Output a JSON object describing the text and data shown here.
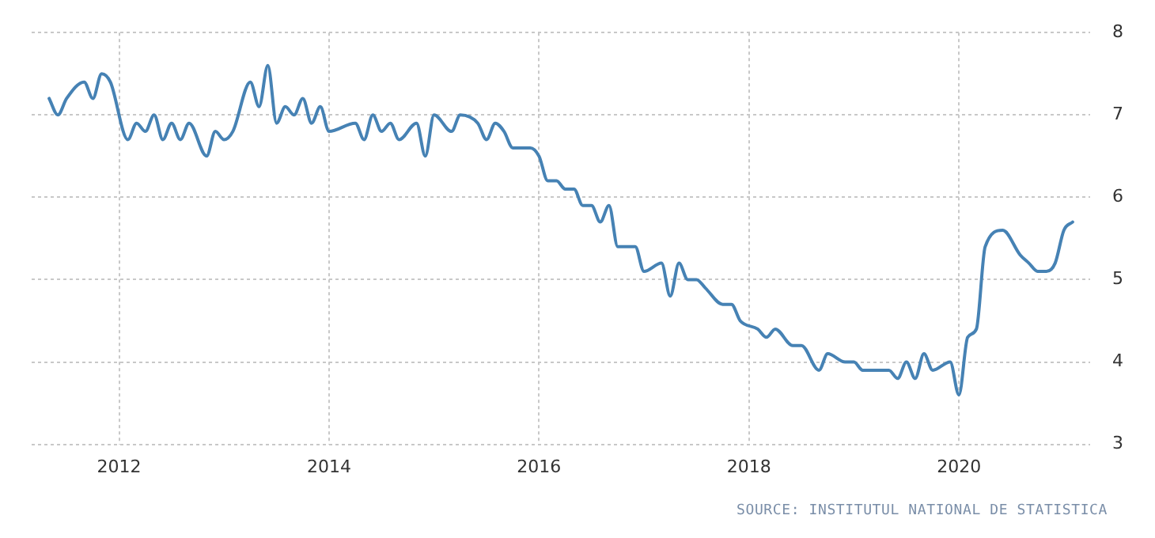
{
  "chart_data": {
    "type": "line",
    "x": [
      "2011-05",
      "2011-06",
      "2011-07",
      "2011-09",
      "2011-10",
      "2011-11",
      "2011-12",
      "2012-02",
      "2012-03",
      "2012-04",
      "2012-05",
      "2012-06",
      "2012-07",
      "2012-08",
      "2012-09",
      "2012-11",
      "2012-12",
      "2013-01",
      "2013-02",
      "2013-04",
      "2013-05",
      "2013-06",
      "2013-07",
      "2013-08",
      "2013-09",
      "2013-10",
      "2013-11",
      "2013-12",
      "2014-01",
      "2014-04",
      "2014-05",
      "2014-06",
      "2014-07",
      "2014-08",
      "2014-09",
      "2014-11",
      "2014-12",
      "2015-01",
      "2015-03",
      "2015-04",
      "2015-06",
      "2015-07",
      "2015-08",
      "2015-09",
      "2015-10",
      "2015-12",
      "2016-01",
      "2016-02",
      "2016-03",
      "2016-04",
      "2016-05",
      "2016-06",
      "2016-07",
      "2016-08",
      "2016-09",
      "2016-10",
      "2016-12",
      "2017-01",
      "2017-03",
      "2017-04",
      "2017-05",
      "2017-06",
      "2017-07",
      "2017-08",
      "2017-10",
      "2017-11",
      "2017-12",
      "2018-02",
      "2018-03",
      "2018-04",
      "2018-06",
      "2018-07",
      "2018-09",
      "2018-10",
      "2018-12",
      "2019-01",
      "2019-02",
      "2019-05",
      "2019-06",
      "2019-07",
      "2019-08",
      "2019-09",
      "2019-10",
      "2019-12",
      "2020-01",
      "2020-02",
      "2020-03",
      "2020-04",
      "2020-06",
      "2020-08",
      "2020-09",
      "2020-10",
      "2020-11",
      "2020-12",
      "2021-01",
      "2021-02"
    ],
    "series": [
      {
        "color": "#4682b4",
        "values": [
          7.2,
          7.0,
          7.2,
          7.4,
          7.2,
          7.5,
          7.4,
          6.7,
          6.9,
          6.8,
          7.0,
          6.7,
          6.9,
          6.7,
          6.9,
          6.5,
          6.8,
          6.7,
          6.8,
          7.4,
          7.1,
          7.6,
          6.9,
          7.1,
          7.0,
          7.2,
          6.9,
          7.1,
          6.8,
          6.9,
          6.7,
          7.0,
          6.8,
          6.9,
          6.7,
          6.9,
          6.5,
          7.0,
          6.8,
          7.0,
          6.9,
          6.7,
          6.9,
          6.8,
          6.6,
          6.6,
          6.5,
          6.2,
          6.2,
          6.1,
          6.1,
          5.9,
          5.9,
          5.7,
          5.9,
          5.4,
          5.4,
          5.1,
          5.2,
          4.8,
          5.2,
          5.0,
          5.0,
          4.9,
          4.7,
          4.7,
          4.5,
          4.4,
          4.3,
          4.4,
          4.2,
          4.2,
          3.9,
          4.1,
          4.0,
          4.0,
          3.9,
          3.9,
          3.8,
          4.0,
          3.8,
          4.1,
          3.9,
          4.0,
          3.6,
          4.3,
          4.4,
          5.4,
          5.6,
          5.3,
          5.2,
          5.1,
          5.1,
          5.2,
          5.6,
          5.7
        ]
      }
    ],
    "xlim": [
      "2011-03",
      "2021-04"
    ],
    "xticks": [
      {
        "value": "2012",
        "label": "2012"
      },
      {
        "value": "2014",
        "label": "2014"
      },
      {
        "value": "2016",
        "label": "2016"
      },
      {
        "value": "2018",
        "label": "2018"
      },
      {
        "value": "2020",
        "label": "2020"
      }
    ],
    "ylim": [
      3,
      8
    ],
    "yticks": [
      3,
      4,
      5,
      6,
      7,
      8
    ],
    "grid": true,
    "legend": false,
    "marker": "none",
    "line_style": "solid",
    "annotations": [
      "SOURCE: INSTITUTUL NATIONAL DE STATISTICA"
    ]
  }
}
